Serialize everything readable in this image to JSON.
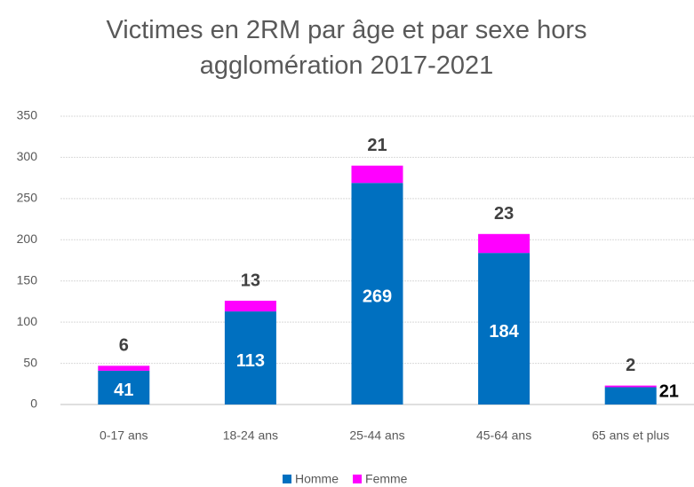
{
  "chart_data": {
    "type": "stacked-bar",
    "title": "Victimes en 2RM par âge et par sexe hors agglomération 2017-2021",
    "categories": [
      "0-17 ans",
      "18-24 ans",
      "25-44 ans",
      "45-64 ans",
      "65 ans et plus"
    ],
    "series": [
      {
        "name": "Homme",
        "color": "#0070c0",
        "values": [
          41,
          113,
          269,
          184,
          21
        ]
      },
      {
        "name": "Femme",
        "color": "#ff00ff",
        "values": [
          6,
          13,
          21,
          23,
          2
        ]
      }
    ],
    "ylim": [
      0,
      350
    ],
    "yticks": [
      0,
      50,
      100,
      150,
      200,
      250,
      300,
      350
    ],
    "grid": true,
    "legend": "bottom"
  }
}
